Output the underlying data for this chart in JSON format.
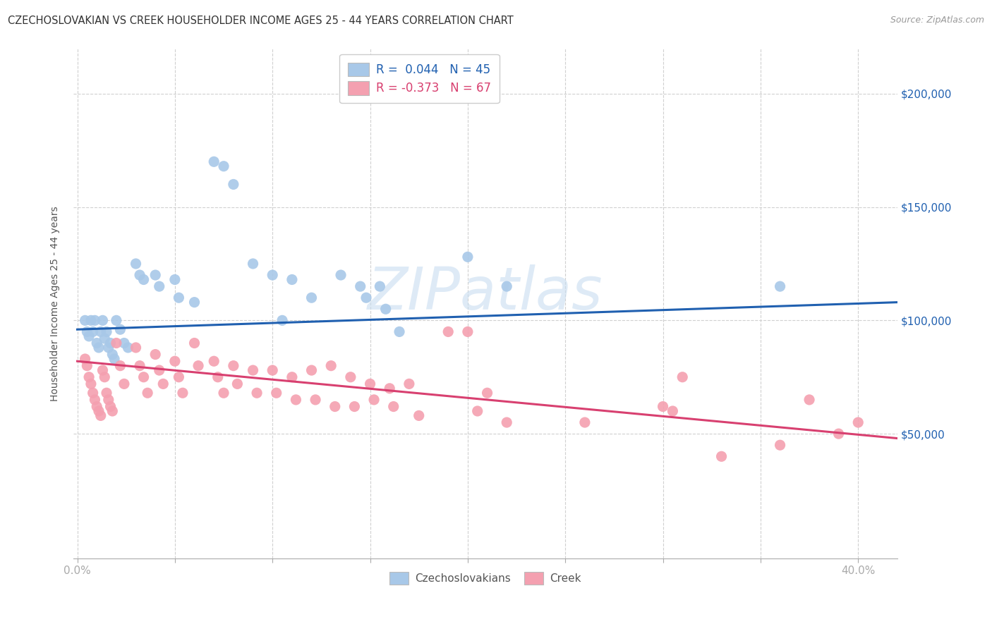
{
  "title": "CZECHOSLOVAKIAN VS CREEK HOUSEHOLDER INCOME AGES 25 - 44 YEARS CORRELATION CHART",
  "source": "Source: ZipAtlas.com",
  "ylabel": "Householder Income Ages 25 - 44 years",
  "watermark": "ZIPatlas",
  "legend_blue_r_val": "0.044",
  "legend_blue_n": "N = 45",
  "legend_pink_r_val": "-0.373",
  "legend_pink_n": "N = 67",
  "legend_label_blue": "Czechoslovakians",
  "legend_label_pink": "Creek",
  "right_ytick_labels": [
    "$50,000",
    "$100,000",
    "$150,000",
    "$200,000"
  ],
  "right_ytick_values": [
    50000,
    100000,
    150000,
    200000
  ],
  "ylim": [
    -5000,
    220000
  ],
  "xlim": [
    -0.002,
    0.42
  ],
  "blue_scatter_x": [
    0.004,
    0.005,
    0.006,
    0.007,
    0.008,
    0.009,
    0.01,
    0.011,
    0.012,
    0.013,
    0.014,
    0.015,
    0.016,
    0.017,
    0.018,
    0.019,
    0.02,
    0.022,
    0.024,
    0.026,
    0.03,
    0.032,
    0.034,
    0.04,
    0.042,
    0.05,
    0.052,
    0.06,
    0.07,
    0.075,
    0.08,
    0.09,
    0.1,
    0.105,
    0.11,
    0.12,
    0.135,
    0.145,
    0.148,
    0.155,
    0.158,
    0.165,
    0.2,
    0.22,
    0.36
  ],
  "blue_scatter_y": [
    100000,
    95000,
    93000,
    100000,
    95000,
    100000,
    90000,
    88000,
    95000,
    100000,
    92000,
    95000,
    88000,
    90000,
    85000,
    83000,
    100000,
    96000,
    90000,
    88000,
    125000,
    120000,
    118000,
    120000,
    115000,
    118000,
    110000,
    108000,
    170000,
    168000,
    160000,
    125000,
    120000,
    100000,
    118000,
    110000,
    120000,
    115000,
    110000,
    115000,
    105000,
    95000,
    128000,
    115000,
    115000
  ],
  "pink_scatter_x": [
    0.004,
    0.005,
    0.006,
    0.007,
    0.008,
    0.009,
    0.01,
    0.011,
    0.012,
    0.013,
    0.014,
    0.015,
    0.016,
    0.017,
    0.018,
    0.02,
    0.022,
    0.024,
    0.03,
    0.032,
    0.034,
    0.036,
    0.04,
    0.042,
    0.044,
    0.05,
    0.052,
    0.054,
    0.06,
    0.062,
    0.07,
    0.072,
    0.075,
    0.08,
    0.082,
    0.09,
    0.092,
    0.1,
    0.102,
    0.11,
    0.112,
    0.12,
    0.122,
    0.13,
    0.132,
    0.14,
    0.142,
    0.15,
    0.152,
    0.16,
    0.162,
    0.17,
    0.175,
    0.19,
    0.2,
    0.205,
    0.21,
    0.22,
    0.26,
    0.3,
    0.305,
    0.31,
    0.33,
    0.36,
    0.375,
    0.39,
    0.4
  ],
  "pink_scatter_y": [
    83000,
    80000,
    75000,
    72000,
    68000,
    65000,
    62000,
    60000,
    58000,
    78000,
    75000,
    68000,
    65000,
    62000,
    60000,
    90000,
    80000,
    72000,
    88000,
    80000,
    75000,
    68000,
    85000,
    78000,
    72000,
    82000,
    75000,
    68000,
    90000,
    80000,
    82000,
    75000,
    68000,
    80000,
    72000,
    78000,
    68000,
    78000,
    68000,
    75000,
    65000,
    78000,
    65000,
    80000,
    62000,
    75000,
    62000,
    72000,
    65000,
    70000,
    62000,
    72000,
    58000,
    95000,
    95000,
    60000,
    68000,
    55000,
    55000,
    62000,
    60000,
    75000,
    40000,
    45000,
    65000,
    50000,
    55000
  ],
  "blue_line_x": [
    0.0,
    0.42
  ],
  "blue_line_y": [
    96000,
    108000
  ],
  "pink_line_x": [
    0.0,
    0.42
  ],
  "pink_line_y": [
    82000,
    48000
  ],
  "blue_color": "#a8c8e8",
  "pink_color": "#f4a0b0",
  "blue_line_color": "#2060b0",
  "pink_line_color": "#d84070",
  "grid_color": "#d0d0d0",
  "background_color": "#ffffff",
  "title_fontsize": 10.5,
  "source_fontsize": 9,
  "watermark_color": "#c8ddf0",
  "watermark_fontsize": 60,
  "marker_size": 120
}
